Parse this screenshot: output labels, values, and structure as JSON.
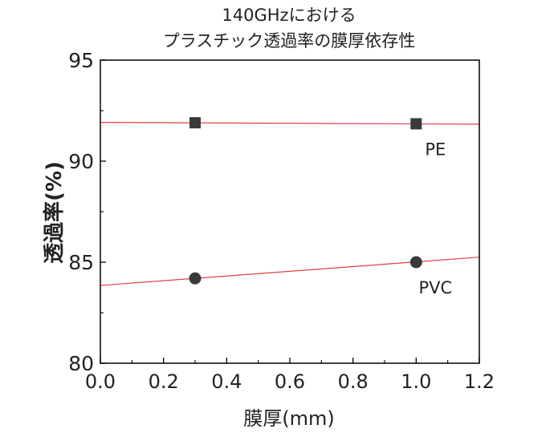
{
  "chart_data": {
    "type": "scatter",
    "title": [
      "140GHzにおける",
      "プラスチック透過率の膜厚依存性"
    ],
    "xlabel": "膜厚(mm)",
    "ylabel": "透過率(%)",
    "xlim": [
      0.0,
      1.2
    ],
    "ylim": [
      80,
      95
    ],
    "xticks": [
      "0.0",
      "0.2",
      "0.4",
      "0.6",
      "0.8",
      "1.0",
      "1.2"
    ],
    "yticks": [
      "80",
      "85",
      "90",
      "95"
    ],
    "grid": false,
    "series": [
      {
        "name": "PE",
        "marker": "square",
        "x": [
          0.3,
          1.0
        ],
        "y": [
          91.9,
          91.85
        ],
        "fit": [
          [
            0.0,
            91.92
          ],
          [
            1.2,
            91.83
          ]
        ]
      },
      {
        "name": "PVC",
        "marker": "circle",
        "x": [
          0.3,
          1.0
        ],
        "y": [
          84.2,
          85.0
        ],
        "fit": [
          [
            0.0,
            83.85
          ],
          [
            1.2,
            85.25
          ]
        ]
      }
    ],
    "colors": {
      "marker": "#3a3a3a",
      "fit_line": "#e04040",
      "axis": "#000000"
    }
  }
}
